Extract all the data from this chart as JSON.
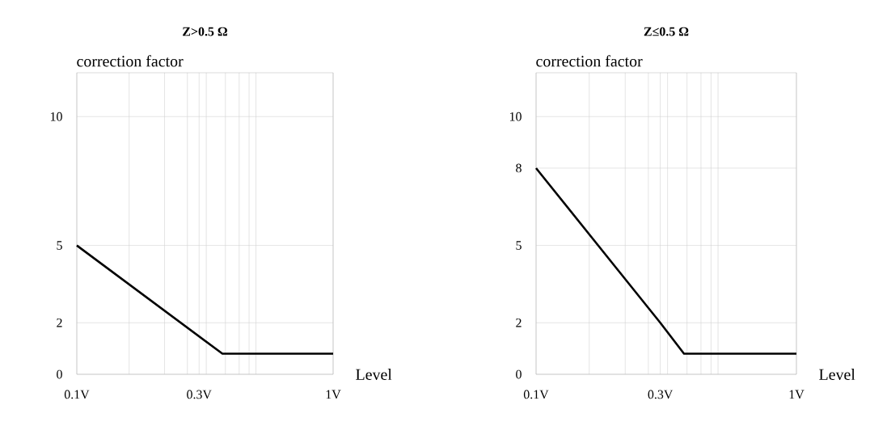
{
  "chart_data": [
    {
      "type": "line",
      "title": "**Z>0.5 Ω**",
      "ylabel": "correction factor",
      "xlabel": "Level",
      "log": "x",
      "grid": true,
      "xlim": [
        0.1,
        1
      ],
      "ylim": [
        0,
        11.7
      ],
      "xticks": [
        {
          "value": 0.1,
          "label": "0.1V"
        },
        {
          "value": 0.16,
          "label": null
        },
        {
          "value": 0.22,
          "label": null
        },
        {
          "value": 0.27,
          "label": null
        },
        {
          "value": 0.3,
          "label": "0.3V"
        },
        {
          "value": 0.32,
          "label": null
        },
        {
          "value": 0.38,
          "label": null
        },
        {
          "value": 0.43,
          "label": null
        },
        {
          "value": 0.47,
          "label": null
        },
        {
          "value": 0.5,
          "label": null
        },
        {
          "value": 1,
          "label": "1V"
        }
      ],
      "yticks": [
        0,
        2,
        5,
        10
      ],
      "series": [
        {
          "color": "#000000",
          "x": [
            0.1,
            0.37,
            1
          ],
          "values": [
            5,
            0.8,
            0.8
          ]
        }
      ]
    },
    {
      "type": "line",
      "title": "**Z≤0.5 Ω**",
      "ylabel": "correction factor",
      "xlabel": "Level",
      "log": "x",
      "grid": true,
      "xlim": [
        0.1,
        1
      ],
      "ylim": [
        0,
        11.7
      ],
      "xticks": [
        {
          "value": 0.1,
          "label": "0.1V"
        },
        {
          "value": 0.16,
          "label": null
        },
        {
          "value": 0.22,
          "label": null
        },
        {
          "value": 0.27,
          "label": null
        },
        {
          "value": 0.32,
          "label": null
        },
        {
          "value": 0.38,
          "label": null
        },
        {
          "value": 0.43,
          "label": null
        },
        {
          "value": 0.47,
          "label": null
        },
        {
          "value": 0.5,
          "label": null
        },
        {
          "value": 0.3,
          "label": "0.3V"
        },
        {
          "value": 1,
          "label": "1V"
        }
      ],
      "yticks": [
        0,
        2,
        5,
        8,
        10
      ],
      "series": [
        {
          "color": "#000000",
          "x": [
            0.1,
            0.3,
            0.37,
            1
          ],
          "values": [
            8,
            2,
            0.8,
            0.8
          ]
        }
      ]
    }
  ]
}
